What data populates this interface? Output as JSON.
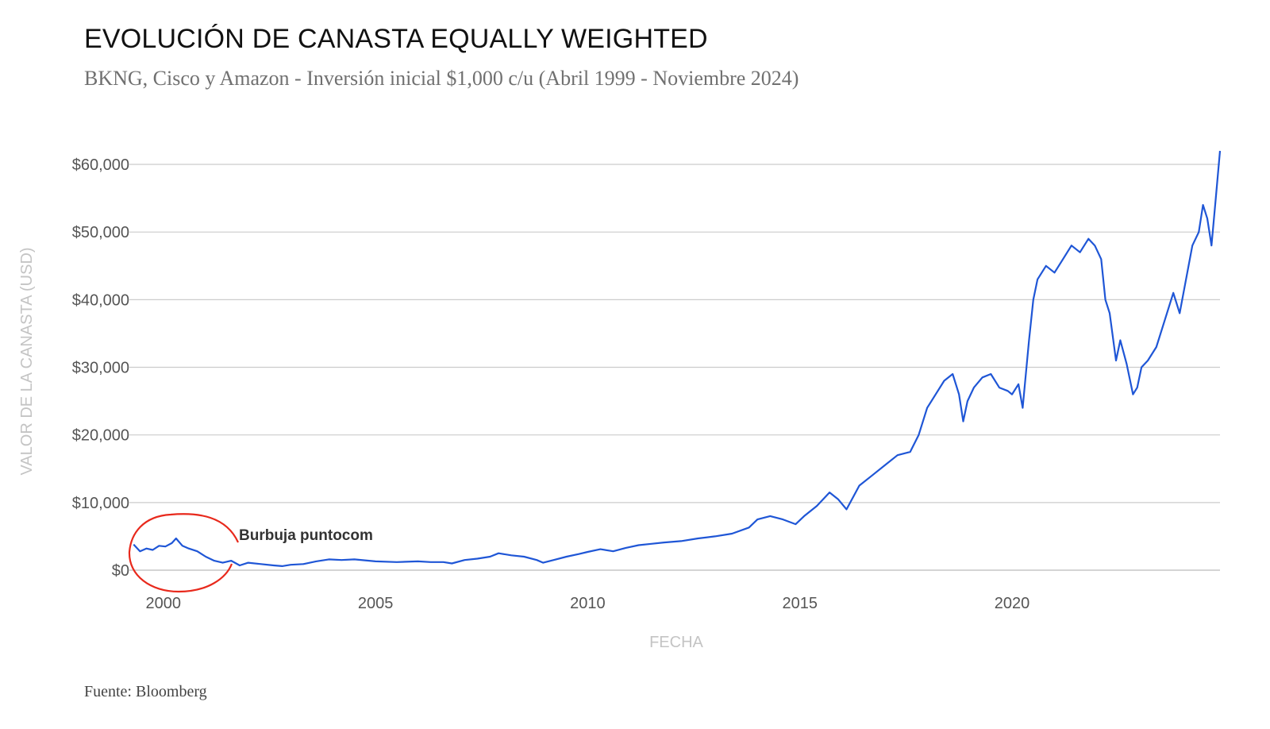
{
  "header": {
    "title": "EVOLUCIÓN DE CANASTA EQUALLY WEIGHTED",
    "subtitle": "BKNG, Cisco y Amazon - Inversión inicial $1,000 c/u (Abril 1999 - Noviembre 2024)"
  },
  "footer": {
    "source": "Fuente: Bloomberg"
  },
  "colors": {
    "line": "#1f56d6",
    "grid": "#cccccc",
    "annotation_circle": "#e8291c"
  },
  "chart_data": {
    "type": "line",
    "title": "EVOLUCIÓN DE CANASTA EQUALLY WEIGHTED",
    "xlabel": "FECHA",
    "ylabel": "VALOR DE LA CANASTA (USD)",
    "xlim": [
      1999.2,
      2024.9
    ],
    "ylim": [
      0,
      62000
    ],
    "x_ticks": [
      2000,
      2005,
      2010,
      2015,
      2020
    ],
    "x_tick_labels": [
      "2000",
      "2005",
      "2010",
      "2015",
      "2020"
    ],
    "y_ticks": [
      0,
      10000,
      20000,
      30000,
      40000,
      50000,
      60000
    ],
    "y_tick_labels": [
      "$0",
      "$10,000",
      "$20,000",
      "$30,000",
      "$40,000",
      "$50,000",
      "$60,000"
    ],
    "grid": true,
    "legend": "none",
    "annotations": [
      {
        "text": "Burbuja puntocom",
        "x_range": [
          1999.2,
          2001.8
        ],
        "style": "hand-drawn circle"
      }
    ],
    "series": [
      {
        "x": [
          1999.3,
          1999.45,
          1999.6,
          1999.75,
          1999.9,
          2000.05,
          2000.2,
          2000.3,
          2000.45,
          2000.6,
          2000.8,
          2001.0,
          2001.2,
          2001.4,
          2001.6,
          2001.8,
          2002.0,
          2002.3,
          2002.6,
          2002.8,
          2003.0,
          2003.3,
          2003.6,
          2003.9,
          2004.2,
          2004.5,
          2005.0,
          2005.5,
          2006.0,
          2006.3,
          2006.6,
          2006.8,
          2007.1,
          2007.4,
          2007.7,
          2007.9,
          2008.2,
          2008.5,
          2008.8,
          2008.95,
          2009.2,
          2009.5,
          2009.8,
          2010.0,
          2010.3,
          2010.6,
          2010.9,
          2011.2,
          2011.5,
          2011.8,
          2012.2,
          2012.6,
          2013.0,
          2013.4,
          2013.8,
          2014.0,
          2014.3,
          2014.6,
          2014.9,
          2015.1,
          2015.4,
          2015.7,
          2015.9,
          2016.1,
          2016.4,
          2016.7,
          2017.0,
          2017.3,
          2017.6,
          2017.8,
          2018.0,
          2018.2,
          2018.4,
          2018.6,
          2018.75,
          2018.85,
          2018.95,
          2019.1,
          2019.3,
          2019.5,
          2019.7,
          2019.9,
          2020.0,
          2020.15,
          2020.25,
          2020.4,
          2020.5,
          2020.6,
          2020.8,
          2021.0,
          2021.2,
          2021.4,
          2021.6,
          2021.8,
          2021.95,
          2022.1,
          2022.2,
          2022.3,
          2022.45,
          2022.55,
          2022.7,
          2022.85,
          2022.95,
          2023.05,
          2023.2,
          2023.4,
          2023.6,
          2023.8,
          2023.95,
          2024.1,
          2024.25,
          2024.4,
          2024.5,
          2024.6,
          2024.7,
          2024.8,
          2024.9
        ],
        "y": [
          3800,
          2800,
          3200,
          3000,
          3600,
          3500,
          4000,
          4700,
          3600,
          3200,
          2800,
          2000,
          1400,
          1100,
          1400,
          700,
          1100,
          900,
          700,
          600,
          800,
          900,
          1300,
          1600,
          1500,
          1600,
          1300,
          1200,
          1300,
          1200,
          1200,
          1000,
          1500,
          1700,
          2000,
          2500,
          2200,
          2000,
          1500,
          1100,
          1500,
          2000,
          2400,
          2700,
          3100,
          2800,
          3300,
          3700,
          3900,
          4100,
          4300,
          4700,
          5000,
          5400,
          6300,
          7500,
          8000,
          7500,
          6800,
          8000,
          9500,
          11500,
          10500,
          9000,
          12500,
          14000,
          15500,
          17000,
          17500,
          20000,
          24000,
          26000,
          28000,
          29000,
          26000,
          22000,
          25000,
          27000,
          28500,
          29000,
          27000,
          26500,
          26000,
          27500,
          24000,
          34000,
          40000,
          43000,
          45000,
          44000,
          46000,
          48000,
          47000,
          49000,
          48000,
          46000,
          40000,
          38000,
          31000,
          34000,
          30500,
          26000,
          27000,
          30000,
          31000,
          33000,
          37000,
          41000,
          38000,
          43000,
          48000,
          50000,
          54000,
          52000,
          48000,
          55000,
          62000
        ]
      }
    ]
  }
}
